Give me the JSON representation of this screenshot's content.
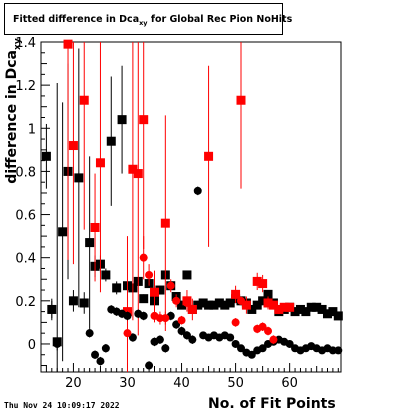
{
  "chart_data": {
    "type": "scatter",
    "title_main": "Fitted difference in Dca",
    "title_sub": "xy",
    "title_rest": " for Global Rec Pion NoHits",
    "xlabel": "No. of Fit Points",
    "ylabel_main": "difference in Dca",
    "ylabel_sub": "xy",
    "xlim": [
      14,
      69.5
    ],
    "ylim": [
      -0.13,
      1.4
    ],
    "xticks": [
      20,
      30,
      40,
      50,
      60
    ],
    "yticks": [
      0,
      0.2,
      0.4,
      0.6,
      0.8,
      1,
      1.2,
      1.4
    ],
    "series": [
      {
        "color": "#000000",
        "marker": "square",
        "points": [
          [
            15,
            0.87,
            0.15
          ],
          [
            16,
            0.16,
            0.05
          ],
          [
            17,
            0.01,
            1.2
          ],
          [
            18,
            0.52,
            0.6
          ],
          [
            19,
            0.8,
            0.5
          ],
          [
            20,
            0.2,
            0.05
          ],
          [
            21,
            0.77,
            0.6
          ],
          [
            22,
            0.19,
            0.05
          ],
          [
            23,
            0.47,
            0.4
          ],
          [
            24,
            0.36,
            0.05
          ],
          [
            25,
            0.37,
            0.04
          ],
          [
            26,
            0.32,
            0.03
          ],
          [
            27,
            0.94,
            0.3
          ],
          [
            28,
            0.26,
            0.03
          ],
          [
            29,
            1.04,
            0.25
          ],
          [
            30,
            0.27,
            0.02
          ],
          [
            31,
            0.26,
            0.02
          ],
          [
            32,
            0.29,
            0.02
          ],
          [
            33,
            0.21,
            0.02
          ],
          [
            34,
            0.28,
            0.02
          ],
          [
            35,
            0.2,
            0.02
          ],
          [
            36,
            0.25,
            0.02
          ],
          [
            37,
            0.32,
            0.02
          ],
          [
            38,
            0.27,
            0.02
          ],
          [
            39,
            0.22,
            0.02
          ],
          [
            40,
            0.18,
            0.02
          ],
          [
            41,
            0.32,
            0.02
          ],
          [
            42,
            0.16,
            0.02
          ],
          [
            43,
            0.18,
            0.02
          ],
          [
            44,
            0.19,
            0.01
          ],
          [
            45,
            0.18,
            0.01
          ],
          [
            46,
            0.18,
            0.01
          ],
          [
            47,
            0.19,
            0.01
          ],
          [
            48,
            0.18,
            0.01
          ],
          [
            49,
            0.19,
            0.01
          ],
          [
            50,
            0.21,
            0.01
          ],
          [
            51,
            0.2,
            0.01
          ],
          [
            52,
            0.19,
            0.01
          ],
          [
            53,
            0.16,
            0.01
          ],
          [
            54,
            0.18,
            0.01
          ],
          [
            55,
            0.2,
            0.01
          ],
          [
            56,
            0.23,
            0.01
          ],
          [
            57,
            0.19,
            0.01
          ],
          [
            58,
            0.15,
            0.01
          ],
          [
            59,
            0.16,
            0.01
          ],
          [
            60,
            0.17,
            0.01
          ],
          [
            61,
            0.15,
            0.01
          ],
          [
            62,
            0.16,
            0.01
          ],
          [
            63,
            0.15,
            0.01
          ],
          [
            64,
            0.17,
            0.01
          ],
          [
            65,
            0.17,
            0.01
          ],
          [
            66,
            0.16,
            0.01
          ],
          [
            67,
            0.14,
            0.01
          ],
          [
            68,
            0.15,
            0.01
          ],
          [
            69,
            0.13,
            0.01
          ]
        ]
      },
      {
        "color": "#ff0000",
        "marker": "square",
        "points": [
          [
            19,
            1.39,
            1.0
          ],
          [
            20,
            0.92,
            0.55
          ],
          [
            22,
            1.13,
            0.6
          ],
          [
            24,
            0.54,
            0.25
          ],
          [
            25,
            0.84,
            0.6
          ],
          [
            30,
            0.15,
            0.35
          ],
          [
            31,
            0.81,
            0.7
          ],
          [
            32,
            0.79,
            0.75
          ],
          [
            33,
            1.04,
            0.6
          ],
          [
            35,
            0.24,
            0.1
          ],
          [
            37,
            0.56,
            0.5
          ],
          [
            41,
            0.2,
            0.05
          ],
          [
            42,
            0.16,
            0.05
          ],
          [
            45,
            0.87,
            0.42
          ],
          [
            50,
            0.23,
            0.04
          ],
          [
            51,
            1.13,
            0.41
          ],
          [
            52,
            0.18,
            0.04
          ],
          [
            54,
            0.29,
            0.04
          ],
          [
            55,
            0.28,
            0.04
          ],
          [
            56,
            0.19,
            0.03
          ],
          [
            57,
            0.18,
            0.02
          ],
          [
            58,
            0.16,
            0.02
          ],
          [
            59,
            0.17,
            0.02
          ],
          [
            60,
            0.17,
            0.02
          ]
        ]
      },
      {
        "color": "#000000",
        "marker": "circle",
        "points": [
          [
            16,
            0.16,
            0.04
          ],
          [
            17,
            0.0,
            0.03
          ],
          [
            20,
            0.2,
            0.02
          ],
          [
            23,
            0.05,
            0.02
          ],
          [
            24,
            -0.05,
            0.02
          ],
          [
            25,
            -0.08,
            0.02
          ],
          [
            26,
            -0.02,
            0.02
          ],
          [
            27,
            0.16,
            0.02
          ],
          [
            28,
            0.15,
            0.02
          ],
          [
            29,
            0.14,
            0.02
          ],
          [
            30,
            0.13,
            0.02
          ],
          [
            31,
            0.03,
            0.02
          ],
          [
            32,
            0.14,
            0.02
          ],
          [
            33,
            0.13,
            0.02
          ],
          [
            34,
            -0.1,
            0.02
          ],
          [
            35,
            0.01,
            0.02
          ],
          [
            36,
            0.02,
            0.02
          ],
          [
            37,
            -0.02,
            0.02
          ],
          [
            38,
            0.13,
            0.02
          ],
          [
            39,
            0.09,
            0.02
          ],
          [
            40,
            0.06,
            0.02
          ],
          [
            41,
            0.04,
            0.02
          ],
          [
            42,
            0.02,
            0.02
          ],
          [
            43,
            0.71,
            0.02
          ],
          [
            44,
            0.04,
            0.01
          ],
          [
            45,
            0.03,
            0.01
          ],
          [
            46,
            0.04,
            0.01
          ],
          [
            47,
            0.03,
            0.01
          ],
          [
            48,
            0.04,
            0.01
          ],
          [
            49,
            0.03,
            0.01
          ],
          [
            50,
            0.0,
            0.01
          ],
          [
            51,
            -0.02,
            0.01
          ],
          [
            52,
            -0.04,
            0.01
          ],
          [
            53,
            -0.05,
            0.01
          ],
          [
            54,
            -0.03,
            0.01
          ],
          [
            55,
            -0.02,
            0.01
          ],
          [
            56,
            0.0,
            0.01
          ],
          [
            57,
            0.01,
            0.01
          ],
          [
            58,
            0.02,
            0.01
          ],
          [
            59,
            0.01,
            0.01
          ],
          [
            60,
            0.0,
            0.01
          ],
          [
            61,
            -0.02,
            0.01
          ],
          [
            62,
            -0.03,
            0.01
          ],
          [
            63,
            -0.02,
            0.01
          ],
          [
            64,
            -0.01,
            0.01
          ],
          [
            65,
            -0.02,
            0.01
          ],
          [
            66,
            -0.03,
            0.01
          ],
          [
            67,
            -0.02,
            0.01
          ],
          [
            68,
            -0.03,
            0.01
          ],
          [
            69,
            -0.03,
            0.01
          ]
        ]
      },
      {
        "color": "#ff0000",
        "marker": "circle",
        "points": [
          [
            30,
            0.05,
            0.03
          ],
          [
            33,
            0.4,
            0.1
          ],
          [
            34,
            0.32,
            0.05
          ],
          [
            35,
            0.13,
            0.03
          ],
          [
            36,
            0.12,
            0.03
          ],
          [
            37,
            0.12,
            0.03
          ],
          [
            38,
            0.27,
            0.03
          ],
          [
            39,
            0.2,
            0.03
          ],
          [
            40,
            0.11,
            0.02
          ],
          [
            41,
            0.19,
            0.02
          ],
          [
            42,
            0.16,
            0.02
          ],
          [
            50,
            0.1,
            0.02
          ],
          [
            51,
            0.2,
            0.02
          ],
          [
            54,
            0.07,
            0.02
          ],
          [
            55,
            0.08,
            0.02
          ],
          [
            56,
            0.06,
            0.02
          ],
          [
            57,
            0.02,
            0.02
          ]
        ]
      }
    ]
  },
  "footer": {
    "date": "Thu Nov 24 10:09:17 2022"
  }
}
